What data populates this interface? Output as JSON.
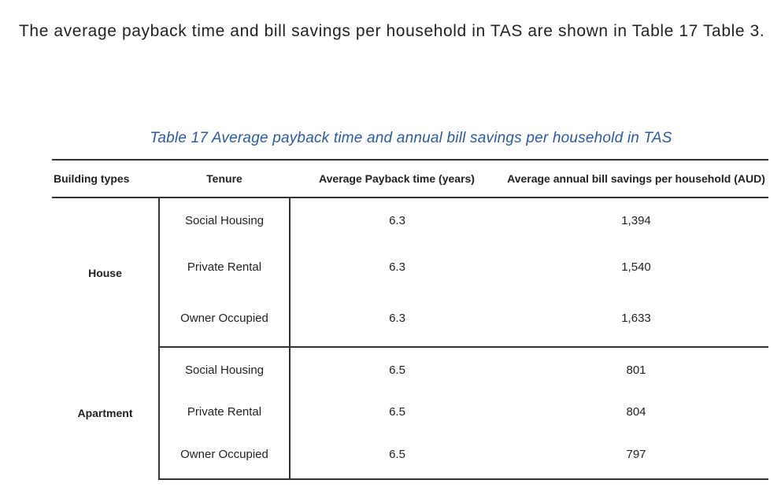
{
  "intro_text": "The average payback time and bill savings per household in TAS are shown in Table 17 Table 3.",
  "table": {
    "caption": "Table 17 Average payback time and annual bill savings per household in TAS",
    "headers": {
      "building_type": "Building types",
      "tenure": "Tenure",
      "payback": "Average Payback time (years)",
      "savings": "Average annual bill savings per household (AUD)"
    },
    "groups": [
      {
        "type": "House",
        "rows": [
          {
            "tenure": "Social Housing",
            "payback": "6.3",
            "savings": "1,394"
          },
          {
            "tenure": "Private Rental",
            "payback": "6.3",
            "savings": "1,540"
          },
          {
            "tenure": "Owner Occupied",
            "payback": "6.3",
            "savings": "1,633"
          }
        ]
      },
      {
        "type": "Apartment",
        "rows": [
          {
            "tenure": "Social Housing",
            "payback": "6.5",
            "savings": "801"
          },
          {
            "tenure": "Private Rental",
            "payback": "6.5",
            "savings": "804"
          },
          {
            "tenure": "Owner Occupied",
            "payback": "6.5",
            "savings": "797"
          }
        ]
      }
    ]
  }
}
